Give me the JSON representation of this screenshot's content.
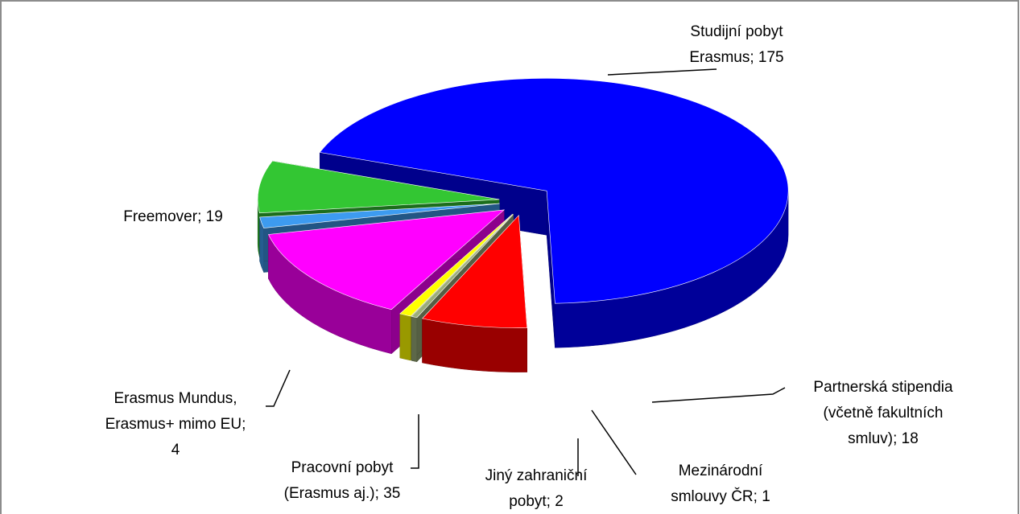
{
  "chart_data": {
    "type": "pie3d",
    "values": [
      175,
      18,
      1,
      2,
      35,
      4,
      19
    ],
    "value_labels": [
      [
        "Studijní pobyt",
        "Erasmus; 175"
      ],
      [
        "Partnerská stipendia",
        "(včetně fakultních",
        "smluv); 18"
      ],
      [
        "Mezinárodní",
        "smlouvy ČR; 1"
      ],
      [
        "Jiný zahraniční",
        "pobyt; 2"
      ],
      [
        "Pracovní pobyt",
        "(Erasmus aj.); 35"
      ],
      [
        "Erasmus Mundus,",
        "Erasmus+ mimo EU;",
        "4"
      ],
      [
        "Freemover; 19"
      ]
    ],
    "colors": [
      "#0000ff",
      "#ff0000",
      "#9bad7a",
      "#ffff00",
      "#ff00ff",
      "#3d9bf0",
      "#33c633"
    ]
  }
}
